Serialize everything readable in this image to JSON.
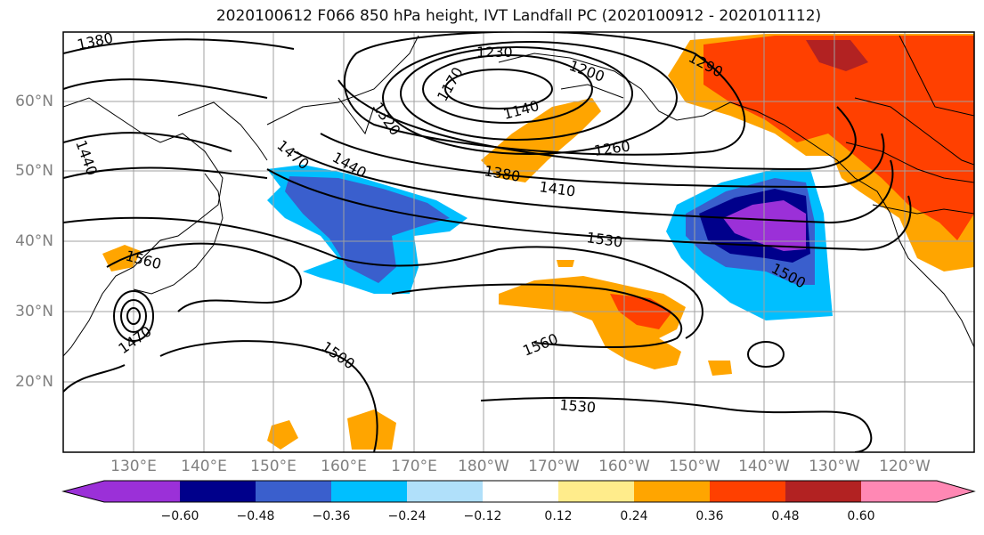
{
  "title": "2020100612 F066 850 hPa height, IVT Landfall PC (2020100912 - 2020101112)",
  "map": {
    "lat_ticks": [
      "60°N",
      "50°N",
      "40°N",
      "30°N",
      "20°N"
    ],
    "lon_ticks": [
      "130°E",
      "140°E",
      "150°E",
      "160°E",
      "170°E",
      "180°W",
      "170°W",
      "160°W",
      "150°W",
      "140°W",
      "130°W",
      "120°W"
    ],
    "contour_labels": [
      "1380",
      "1230",
      "1200",
      "1170",
      "1140",
      "1320",
      "1290",
      "1440",
      "1470",
      "1440",
      "1260",
      "1380",
      "1410",
      "1530",
      "1560",
      "1500",
      "1470",
      "1500",
      "1560",
      "1530",
      "1500"
    ]
  },
  "colorbar": {
    "ticks": [
      "−0.60",
      "−0.48",
      "−0.36",
      "−0.24",
      "−0.12",
      "0.12",
      "0.24",
      "0.36",
      "0.48",
      "0.60"
    ],
    "colors": [
      "#9b30d8",
      "#00008b",
      "#3a5fcd",
      "#00bfff",
      "#b0e0fa",
      "#ffffff",
      "#ffec8b",
      "#ffa500",
      "#ff4000",
      "#b22222",
      "#ff88b4"
    ]
  }
}
